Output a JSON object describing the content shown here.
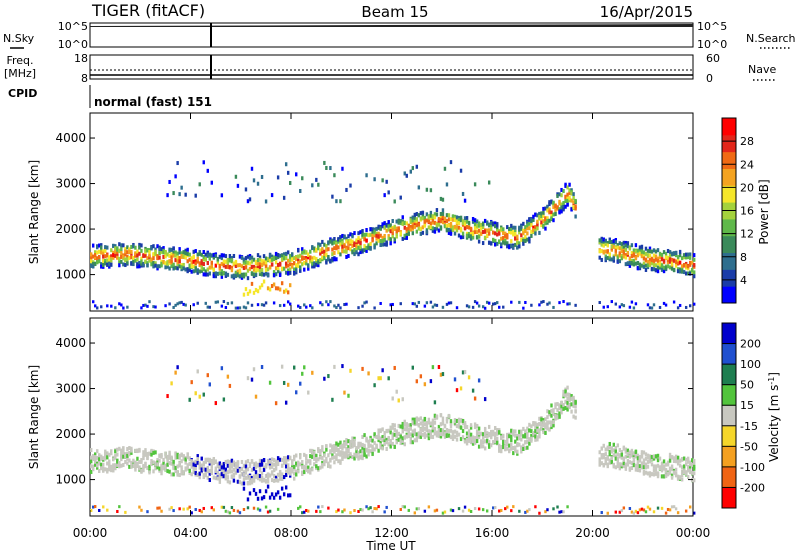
{
  "header": {
    "radar": "TIGER (fitACF)",
    "beam": "Beam 15",
    "date": "16/Apr/2015"
  },
  "noise_panel": {
    "left_label": "N.Sky",
    "right_label": "N.Search",
    "left_ticks": [
      "10^5",
      "10^0"
    ],
    "right_ticks": [
      "10^5",
      "10^0"
    ]
  },
  "freq_panel": {
    "left_label_1": "Freq.",
    "left_label_2": "[MHz]",
    "right_label": "Nave",
    "left_ticks": [
      "18",
      "8"
    ],
    "right_ticks": [
      "60",
      "0"
    ]
  },
  "cpid_panel": {
    "label": "CPID",
    "text": "normal (fast) 151"
  },
  "chart_data": [
    {
      "type": "heatmap",
      "name": "power",
      "ylabel": "Slant Range [km]",
      "y_ticks": [
        "1000",
        "2000",
        "3000",
        "4000"
      ],
      "ylim": [
        200,
        4550
      ],
      "x_ticks": [
        "00:00",
        "04:00",
        "08:00",
        "12:00",
        "16:00",
        "20:00",
        "00:00"
      ],
      "xlim_hours": [
        0,
        24
      ],
      "colorbar": {
        "label": "Power [dB]",
        "ticks": [
          "4",
          "8",
          "12",
          "16",
          "20",
          "24",
          "28"
        ],
        "colors": [
          "#0000ff",
          "#1a3ca8",
          "#2e6e8e",
          "#3a8a5a",
          "#5fb84a",
          "#a4d23c",
          "#f5e62a",
          "#f4a320",
          "#f06a14",
          "#e3261a",
          "#ff0000"
        ]
      }
    },
    {
      "type": "heatmap",
      "name": "velocity",
      "ylabel": "Slant Range [km]",
      "y_ticks": [
        "1000",
        "2000",
        "3000",
        "4000"
      ],
      "ylim": [
        200,
        4550
      ],
      "x_ticks": [
        "00:00",
        "04:00",
        "08:00",
        "12:00",
        "16:00",
        "20:00",
        "00:00"
      ],
      "xlim_hours": [
        0,
        24
      ],
      "xlabel": "Time UT",
      "colorbar": {
        "label": "Velocity [m s^-1]",
        "ticks": [
          "200",
          "100",
          "50",
          "15",
          "-15",
          "-50",
          "-100",
          "-200"
        ],
        "colors": [
          "#0000cc",
          "#2050d0",
          "#1e7e50",
          "#52c43c",
          "#c8c8c0",
          "#f5d62a",
          "#f4a020",
          "#f06414",
          "#ff0000"
        ]
      }
    }
  ]
}
